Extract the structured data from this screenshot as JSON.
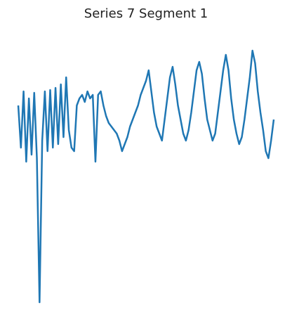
{
  "chart_data": {
    "type": "line",
    "title": "Series 7 Segment 1",
    "color": "#1f77b4",
    "ylim": [
      0,
      400
    ],
    "values": [
      300,
      240,
      320,
      220,
      310,
      230,
      318,
      225,
      20,
      250,
      320,
      235,
      322,
      240,
      325,
      245,
      330,
      255,
      340,
      265,
      240,
      235,
      300,
      310,
      315,
      305,
      320,
      310,
      315,
      220,
      315,
      320,
      300,
      285,
      275,
      270,
      265,
      260,
      250,
      235,
      245,
      255,
      270,
      280,
      290,
      300,
      315,
      325,
      335,
      350,
      320,
      290,
      270,
      260,
      250,
      280,
      310,
      340,
      355,
      330,
      300,
      280,
      260,
      250,
      265,
      290,
      320,
      350,
      362,
      345,
      310,
      280,
      265,
      250,
      260,
      290,
      320,
      350,
      372,
      350,
      310,
      280,
      260,
      245,
      255,
      280,
      310,
      340,
      378,
      360,
      320,
      290,
      265,
      235,
      225,
      250,
      280
    ]
  }
}
